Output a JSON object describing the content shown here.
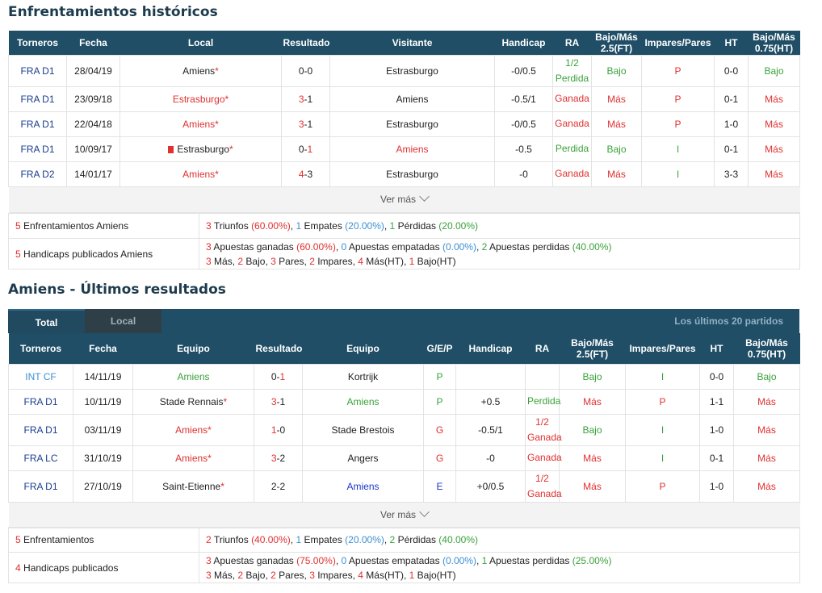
{
  "section1": {
    "title": "Enfrentamientos históricos",
    "headers": [
      "Torneros",
      "Fecha",
      "Local",
      "Resultado",
      "Visitante",
      "Handicap",
      "RA",
      "Bajo/Más 2.5(FT)",
      "Impares/Pares",
      "HT",
      "Bajo/Más 0.75(HT)"
    ],
    "rows": [
      {
        "league": "FRA D1",
        "date": "28/04/19",
        "home": "Amiens",
        "home_star": "*",
        "home_color": "dark",
        "res_a": "0",
        "res_b": "0",
        "away": "Estrasburgo",
        "away_color": "dark",
        "hcap": "-0/0.5",
        "ra": "1/2 Perdida",
        "ra_color": "green",
        "ou": "Bajo",
        "ou_color": "green",
        "oe": "P",
        "oe_color": "red",
        "ht": "0-0",
        "ou2": "Bajo",
        "ou2_color": "green"
      },
      {
        "league": "FRA D1",
        "date": "23/09/18",
        "home": "Estrasburgo",
        "home_star": "*",
        "home_color": "red",
        "res_a": "3",
        "res_b": "1",
        "away": "Amiens",
        "away_color": "dark",
        "hcap": "-0.5/1",
        "ra": "Ganada",
        "ra_color": "red",
        "ou": "Más",
        "ou_color": "red",
        "oe": "P",
        "oe_color": "red",
        "ht": "0-1",
        "ou2": "Más",
        "ou2_color": "red"
      },
      {
        "league": "FRA D1",
        "date": "22/04/18",
        "home": "Amiens",
        "home_star": "*",
        "home_color": "red",
        "res_a": "3",
        "res_b": "1",
        "away": "Estrasburgo",
        "away_color": "dark",
        "hcap": "-0/0.5",
        "ra": "Ganada",
        "ra_color": "red",
        "ou": "Más",
        "ou_color": "red",
        "oe": "P",
        "oe_color": "red",
        "ht": "1-0",
        "ou2": "Más",
        "ou2_color": "red"
      },
      {
        "league": "FRA D1",
        "date": "10/09/17",
        "home": "Estrasburgo",
        "home_star": "*",
        "home_color": "dark",
        "home_flag": true,
        "res_a": "0",
        "res_b": "1",
        "away": "Amiens",
        "away_color": "red",
        "hcap": "-0.5",
        "ra": "Perdida",
        "ra_color": "green",
        "ou": "Bajo",
        "ou_color": "green",
        "oe": "I",
        "oe_color": "green",
        "ht": "0-1",
        "ou2": "Más",
        "ou2_color": "red"
      },
      {
        "league": "FRA D2",
        "date": "14/01/17",
        "home": "Amiens",
        "home_star": "*",
        "home_color": "red",
        "res_a": "4",
        "res_b": "3",
        "away": "Estrasburgo",
        "away_color": "dark",
        "hcap": "-0",
        "ra": "Ganada",
        "ra_color": "red",
        "ou": "Más",
        "ou_color": "red",
        "oe": "I",
        "oe_color": "green",
        "ht": "3-3",
        "ou2": "Más",
        "ou2_color": "red"
      }
    ],
    "more": "Ver más",
    "summary1": {
      "count": "5",
      "label": "Enfrentamientos Amiens",
      "wins": "3",
      "wins_txt": "Triunfos",
      "wins_pct": "(60.00%)",
      "draws": "1",
      "draws_txt": "Empates",
      "draws_pct": "(20.00%)",
      "losses": "1",
      "losses_txt": "Pérdidas",
      "losses_pct": "(20.00%)"
    },
    "summary2": {
      "count": "5",
      "label": "Handicaps publicados Amiens",
      "won": "3",
      "won_txt": "Apuestas ganadas",
      "won_pct": "(60.00%)",
      "tie": "0",
      "tie_txt": "Apuestas empatadas",
      "tie_pct": "(0.00%)",
      "lost": "2",
      "lost_txt": "Apuestas perdidas",
      "lost_pct": "(40.00%)",
      "l2_a": "3",
      "l2_a_txt": "Más,",
      "l2_b": "2",
      "l2_b_txt": "Bajo,",
      "l2_c": "3",
      "l2_c_txt": "Pares,",
      "l2_d": "2",
      "l2_d_txt": "Impares,",
      "l2_e": "4",
      "l2_e_txt": "Más(HT),",
      "l2_f": "1",
      "l2_f_txt": "Bajo(HT)"
    }
  },
  "section2": {
    "title": "Amiens - Últimos resultados",
    "tab_total": "Total",
    "tab_local": "Local",
    "last_n": "Los últimos 20 partidos",
    "headers": [
      "Torneros",
      "Fecha",
      "Equipo",
      "Resultado",
      "Equipo",
      "G/E/P",
      "Handicap",
      "RA",
      "Bajo/Más 2.5(FT)",
      "Impares/Pares",
      "HT",
      "Bajo/Más 0.75(HT)"
    ],
    "rows": [
      {
        "league": "INT CF",
        "league_color": "light",
        "date": "14/11/19",
        "home": "Amiens",
        "home_star": "",
        "home_color": "green",
        "res_a": "0",
        "res_b": "1",
        "away": "Kortrijk",
        "away_color": "dark",
        "gep": "P",
        "gep_color": "green",
        "hcap": "",
        "ra": "",
        "ra_color": "green",
        "ou": "Bajo",
        "ou_color": "green",
        "oe": "I",
        "oe_color": "green",
        "ht": "0-0",
        "ou2": "Bajo",
        "ou2_color": "green"
      },
      {
        "league": "FRA D1",
        "league_color": "dark",
        "date": "10/11/19",
        "home": "Stade Rennais",
        "home_star": "*",
        "home_color": "dark",
        "res_a": "3",
        "res_b": "1",
        "away": "Amiens",
        "away_color": "green",
        "gep": "P",
        "gep_color": "green",
        "hcap": "+0.5",
        "ra": "Perdida",
        "ra_color": "green",
        "ou": "Más",
        "ou_color": "red",
        "oe": "P",
        "oe_color": "red",
        "ht": "1-1",
        "ou2": "Más",
        "ou2_color": "red"
      },
      {
        "league": "FRA D1",
        "league_color": "dark",
        "date": "03/11/19",
        "home": "Amiens",
        "home_star": "*",
        "home_color": "red",
        "res_a": "1",
        "res_b": "0",
        "away": "Stade Brestois",
        "away_color": "dark",
        "gep": "G",
        "gep_color": "red",
        "hcap": "-0.5/1",
        "ra": "1/2 Ganada",
        "ra_color": "red",
        "ou": "Bajo",
        "ou_color": "green",
        "oe": "I",
        "oe_color": "green",
        "ht": "1-0",
        "ou2": "Más",
        "ou2_color": "red"
      },
      {
        "league": "FRA LC",
        "league_color": "dark",
        "date": "31/10/19",
        "home": "Amiens",
        "home_star": "*",
        "home_color": "red",
        "res_a": "3",
        "res_b": "2",
        "away": "Angers",
        "away_color": "dark",
        "gep": "G",
        "gep_color": "red",
        "hcap": "-0",
        "ra": "Ganada",
        "ra_color": "red",
        "ou": "Más",
        "ou_color": "red",
        "oe": "I",
        "oe_color": "green",
        "ht": "0-1",
        "ou2": "Más",
        "ou2_color": "red"
      },
      {
        "league": "FRA D1",
        "league_color": "dark",
        "date": "27/10/19",
        "home": "Saint-Etienne",
        "home_star": "*",
        "home_color": "dark",
        "res_a": "2",
        "res_b": "2",
        "away": "Amiens",
        "away_color": "blue",
        "gep": "E",
        "gep_color": "blue",
        "hcap": "+0/0.5",
        "ra": "1/2 Ganada",
        "ra_color": "red",
        "ou": "Más",
        "ou_color": "red",
        "oe": "P",
        "oe_color": "red",
        "ht": "1-0",
        "ou2": "Más",
        "ou2_color": "red"
      }
    ],
    "more": "Ver más",
    "summary1": {
      "count": "5",
      "label": "Enfrentamientos",
      "wins": "2",
      "wins_txt": "Triunfos",
      "wins_pct": "(40.00%)",
      "draws": "1",
      "draws_txt": "Empates",
      "draws_pct": "(20.00%)",
      "losses": "2",
      "losses_txt": "Pérdidas",
      "losses_pct": "(40.00%)"
    },
    "summary2": {
      "count": "4",
      "label": "Handicaps publicados",
      "won": "3",
      "won_txt": "Apuestas ganadas",
      "won_pct": "(75.00%)",
      "tie": "0",
      "tie_txt": "Apuestas empatadas",
      "tie_pct": "(0.00%)",
      "lost": "1",
      "lost_txt": "Apuestas perdidas",
      "lost_pct": "(25.00%)",
      "l2_a": "3",
      "l2_a_txt": "Más,",
      "l2_b": "2",
      "l2_b_txt": "Bajo,",
      "l2_c": "2",
      "l2_c_txt": "Pares,",
      "l2_d": "3",
      "l2_d_txt": "Impares,",
      "l2_e": "4",
      "l2_e_txt": "Más(HT),",
      "l2_f": "1",
      "l2_f_txt": "Bajo(HT)"
    }
  },
  "colors": {
    "header_bg": "#1f4e66",
    "title": "#1d3b4d",
    "red": "#e03030",
    "green": "#3aa13a",
    "blue": "#1a37c8",
    "league": "#1a3d8f",
    "league_light": "#3e8fd0"
  }
}
